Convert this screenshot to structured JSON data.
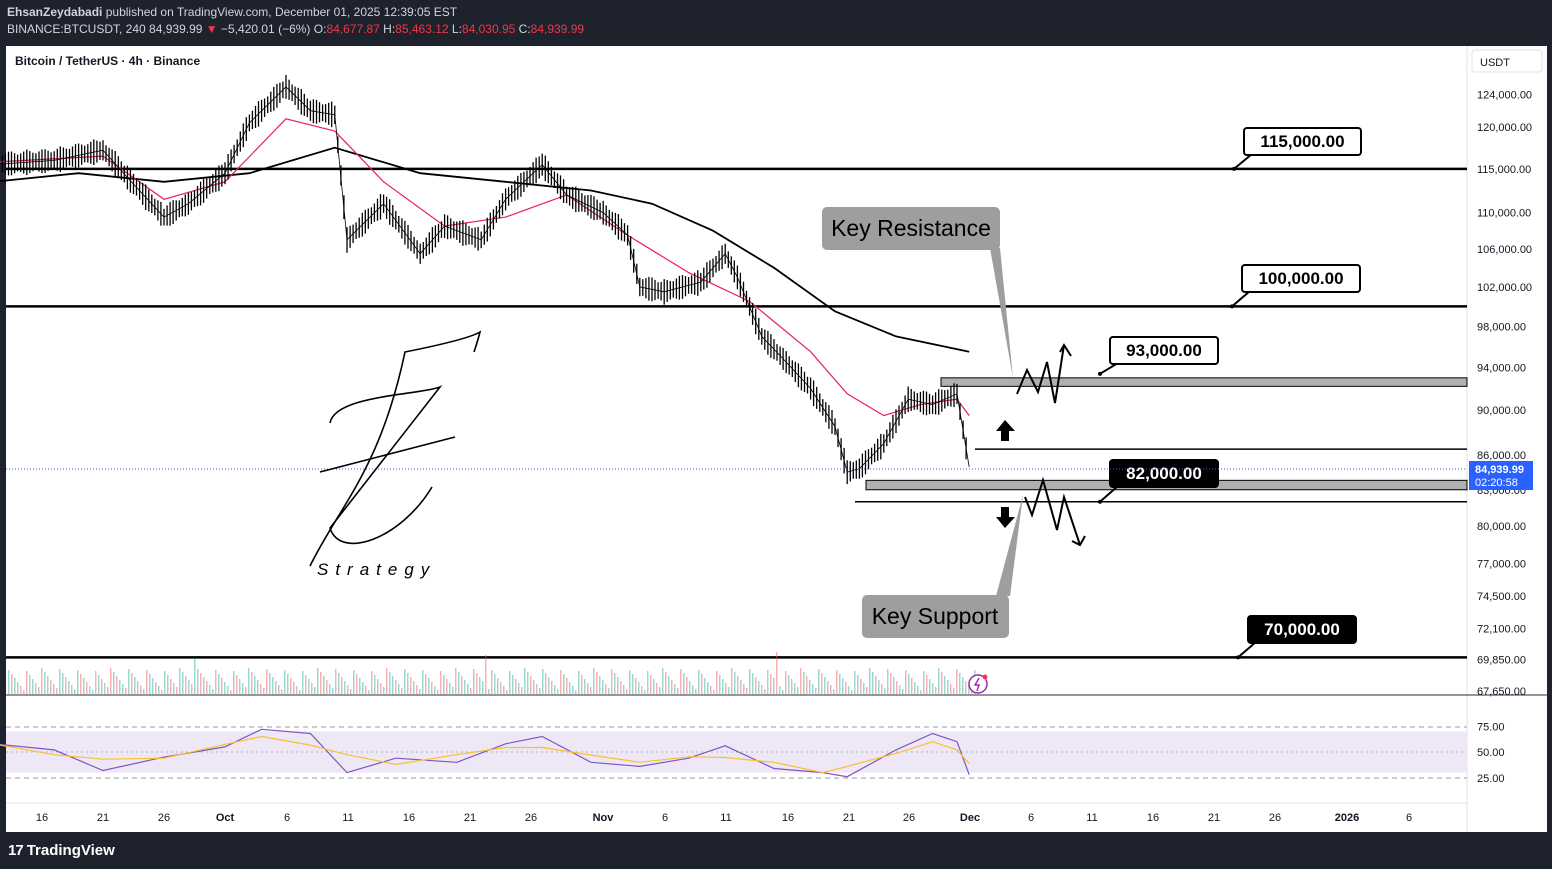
{
  "header": {
    "author": "EhsanZeydabadi",
    "published": "published on TradingView.com, December 01, 2025 12:39:05 EST",
    "symbol": "BINANCE:BTCUSDT, 240",
    "price": "84,939.99",
    "change_arrow": "▼",
    "change": "−5,420.01 (−6%)",
    "o_label": "O:",
    "o_value": "84,677.87",
    "h_label": "H:",
    "h_value": "85,463.12",
    "l_label": "L:",
    "l_value": "84,030.95",
    "c_label": "C:",
    "c_value": "84,939.99"
  },
  "chart_title": "Bitcoin / TetherUS · 4h · Binance",
  "currency": "USDT",
  "last_price_label": "84,939.99",
  "countdown_label": "02:20:58",
  "footer_brand": "TradingView",
  "colors": {
    "background": "#ffffff",
    "frame": "#1e222d",
    "price_line": "#000000",
    "ema_fast": "#e91e63",
    "ma_slow": "#000000",
    "rsi_line": "#7e57c2",
    "rsi_signal": "#fbc02d",
    "rsi_band": "#ede7f6",
    "last_price": "#2962ff",
    "volume_up": "#26a69a",
    "volume_down": "#ef5350"
  },
  "chart_data": {
    "type": "line",
    "title": "Bitcoin / TetherUS · 4h · Binance",
    "y_axis": {
      "ticks": [
        "124,000.00",
        "120,000.00",
        "115,000.00",
        "110,000.00",
        "106,000.00",
        "102,000.00",
        "98,000.00",
        "94,000.00",
        "90,000.00",
        "86,000.00",
        "83,000.00",
        "80,000.00",
        "77,000.00",
        "74,500.00",
        "72,100.00",
        "69,850.00",
        "67,650.00"
      ],
      "scale": "log"
    },
    "x_axis": {
      "ticks": [
        "16",
        "21",
        "26",
        "Oct",
        "6",
        "11",
        "16",
        "21",
        "26",
        "Nov",
        "6",
        "11",
        "16",
        "21",
        "26",
        "Dec",
        "6",
        "11",
        "16",
        "21",
        "26",
        "2026",
        "6"
      ]
    },
    "price_series": {
      "name": "BTCUSDT",
      "x": [
        "Sep 12",
        "Sep 17",
        "Sep 21",
        "Sep 23",
        "Sep 26",
        "Sep 28",
        "Oct 1",
        "Oct 3",
        "Oct 6",
        "Oct 8",
        "Oct 10",
        "Oct 11",
        "Oct 14",
        "Oct 17",
        "Oct 19",
        "Oct 22",
        "Oct 24",
        "Oct 27",
        "Oct 29",
        "Nov 1",
        "Nov 3",
        "Nov 4",
        "Nov 6",
        "Nov 9",
        "Nov 11",
        "Nov 12",
        "Nov 14",
        "Nov 16",
        "Nov 18",
        "Nov 20",
        "Nov 21",
        "Nov 22",
        "Nov 24",
        "Nov 26",
        "Nov 28",
        "Nov 30",
        "Dec 1"
      ],
      "y": [
        115500,
        116000,
        117200,
        114000,
        109500,
        111000,
        114500,
        120500,
        125000,
        122000,
        121500,
        107000,
        111000,
        105500,
        108500,
        107000,
        111500,
        115500,
        112000,
        110000,
        107500,
        102000,
        101500,
        102500,
        105500,
        103000,
        97000,
        94500,
        92000,
        88500,
        84500,
        84800,
        87000,
        91000,
        90500,
        91500,
        84939.99
      ]
    },
    "ema_fast": {
      "x": [
        "Sep 12",
        "Sep 21",
        "Sep 26",
        "Oct 1",
        "Oct 6",
        "Oct 10",
        "Oct 14",
        "Oct 19",
        "Oct 24",
        "Oct 29",
        "Nov 3",
        "Nov 8",
        "Nov 13",
        "Nov 18",
        "Nov 21",
        "Nov 24",
        "Nov 27",
        "Nov 30",
        "Dec 1"
      ],
      "y": [
        115800,
        116500,
        111500,
        113500,
        121000,
        119500,
        113500,
        108500,
        109500,
        112000,
        107500,
        103500,
        100500,
        95500,
        91500,
        89500,
        90500,
        91000,
        89500
      ]
    },
    "ma_slow": {
      "x": [
        "Sep 12",
        "Sep 19",
        "Sep 26",
        "Oct 3",
        "Oct 10",
        "Oct 17",
        "Oct 24",
        "Oct 31",
        "Nov 5",
        "Nov 10",
        "Nov 15",
        "Nov 20",
        "Nov 25",
        "Dec 1"
      ],
      "y": [
        113500,
        114500,
        113500,
        114500,
        117500,
        114500,
        113500,
        112500,
        111000,
        108000,
        104000,
        99500,
        97000,
        95500
      ]
    },
    "rsi": {
      "ticks": [
        "75.00",
        "50.00",
        "25.00"
      ],
      "band": [
        30,
        70
      ],
      "x": [
        "Sep 12",
        "Sep 17",
        "Sep 21",
        "Sep 26",
        "Oct 1",
        "Oct 4",
        "Oct 8",
        "Oct 11",
        "Oct 15",
        "Oct 20",
        "Oct 24",
        "Oct 27",
        "Oct 31",
        "Nov 4",
        "Nov 8",
        "Nov 11",
        "Nov 15",
        "Nov 19",
        "Nov 21",
        "Nov 25",
        "Nov 28",
        "Nov 30",
        "Dec 1"
      ],
      "y": [
        58,
        52,
        32,
        45,
        55,
        72,
        68,
        30,
        44,
        40,
        58,
        65,
        40,
        36,
        44,
        56,
        34,
        30,
        26,
        52,
        68,
        60,
        28
      ]
    },
    "levels": [
      {
        "label": "115,000.00",
        "value": 115000
      },
      {
        "label": "100,000.00",
        "value": 100000
      },
      {
        "label": "93,000.00",
        "value": 93000
      },
      {
        "label": "82,000.00",
        "value": 82000
      },
      {
        "label": "70,000.00",
        "value": 70000
      }
    ],
    "zones": [
      {
        "top": 93000,
        "bottom": 92200
      },
      {
        "top": 86500,
        "bottom": 86500
      },
      {
        "top": 83800,
        "bottom": 83000
      },
      {
        "top": 82000,
        "bottom": 82000
      }
    ],
    "annotations": [
      "Key Resistance",
      "Key Support"
    ],
    "logo_text": "Strategy"
  }
}
